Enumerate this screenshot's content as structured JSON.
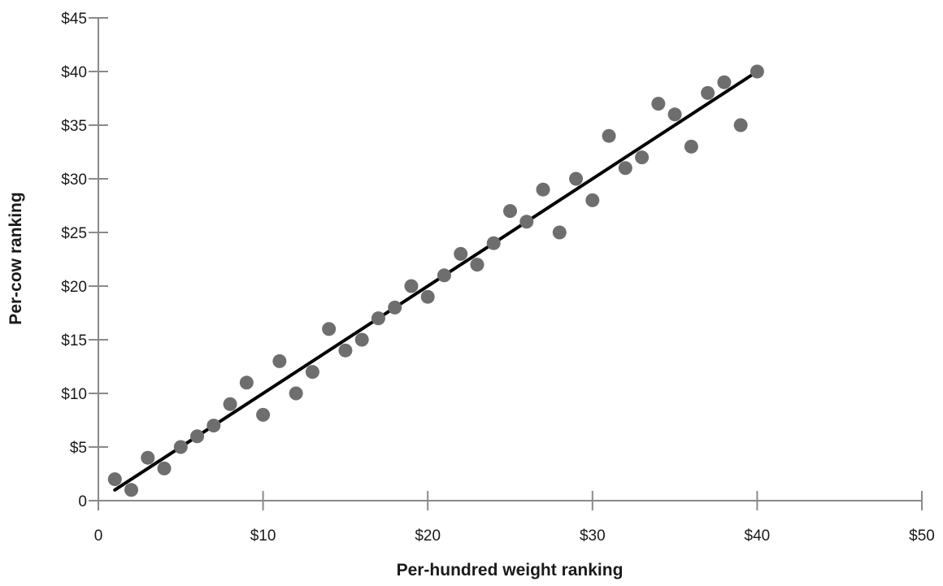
{
  "chart_data": {
    "type": "scatter",
    "title": "",
    "xlabel": "Per-hundred weight ranking",
    "ylabel": "Per-cow ranking",
    "xlim": [
      0,
      50
    ],
    "ylim": [
      0,
      45
    ],
    "x_ticks": [
      {
        "value": 0,
        "label": "0"
      },
      {
        "value": 10,
        "label": "$10"
      },
      {
        "value": 20,
        "label": "$20"
      },
      {
        "value": 30,
        "label": "$30"
      },
      {
        "value": 40,
        "label": "$40"
      },
      {
        "value": 50,
        "label": "$50"
      }
    ],
    "y_ticks": [
      {
        "value": 0,
        "label": "0"
      },
      {
        "value": 5,
        "label": "$5"
      },
      {
        "value": 10,
        "label": "$10"
      },
      {
        "value": 15,
        "label": "$15"
      },
      {
        "value": 20,
        "label": "$20"
      },
      {
        "value": 25,
        "label": "$25"
      },
      {
        "value": 30,
        "label": "$30"
      },
      {
        "value": 35,
        "label": "$35"
      },
      {
        "value": 40,
        "label": "$40"
      },
      {
        "value": 45,
        "label": "$45"
      }
    ],
    "grid": false,
    "legend": "none",
    "point_color": "#6e6e6e",
    "line_color": "#000000",
    "points": [
      {
        "x": 1,
        "y": 2
      },
      {
        "x": 2,
        "y": 1
      },
      {
        "x": 3,
        "y": 4
      },
      {
        "x": 4,
        "y": 3
      },
      {
        "x": 5,
        "y": 5
      },
      {
        "x": 6,
        "y": 6
      },
      {
        "x": 7,
        "y": 7
      },
      {
        "x": 8,
        "y": 9
      },
      {
        "x": 9,
        "y": 11
      },
      {
        "x": 10,
        "y": 8
      },
      {
        "x": 11,
        "y": 13
      },
      {
        "x": 12,
        "y": 10
      },
      {
        "x": 13,
        "y": 12
      },
      {
        "x": 14,
        "y": 16
      },
      {
        "x": 15,
        "y": 14
      },
      {
        "x": 16,
        "y": 15
      },
      {
        "x": 17,
        "y": 17
      },
      {
        "x": 18,
        "y": 18
      },
      {
        "x": 19,
        "y": 20
      },
      {
        "x": 20,
        "y": 19
      },
      {
        "x": 21,
        "y": 21
      },
      {
        "x": 22,
        "y": 23
      },
      {
        "x": 23,
        "y": 22
      },
      {
        "x": 24,
        "y": 24
      },
      {
        "x": 25,
        "y": 27
      },
      {
        "x": 26,
        "y": 26
      },
      {
        "x": 27,
        "y": 29
      },
      {
        "x": 28,
        "y": 25
      },
      {
        "x": 29,
        "y": 30
      },
      {
        "x": 30,
        "y": 28
      },
      {
        "x": 31,
        "y": 34
      },
      {
        "x": 32,
        "y": 31
      },
      {
        "x": 33,
        "y": 32
      },
      {
        "x": 34,
        "y": 37
      },
      {
        "x": 35,
        "y": 36
      },
      {
        "x": 36,
        "y": 33
      },
      {
        "x": 37,
        "y": 38
      },
      {
        "x": 38,
        "y": 39
      },
      {
        "x": 39,
        "y": 35
      },
      {
        "x": 40,
        "y": 40
      }
    ],
    "trend_line": {
      "x_start": 1,
      "y_start": 1,
      "x_end": 40,
      "y_end": 40
    }
  }
}
